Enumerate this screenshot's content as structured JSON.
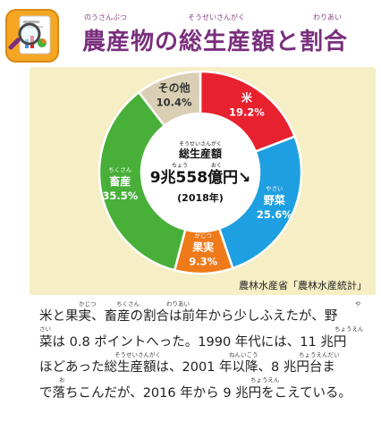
{
  "header": {
    "title": "農産物の総生産額と割合",
    "title_ruby": [
      "のうさんぶつ",
      "そうせいさんがく",
      "わりあい"
    ],
    "icon": "magnifier-over-chart-icon"
  },
  "chart_data": {
    "type": "pie",
    "style": "donut",
    "slices": [
      {
        "label": "米",
        "value": 19.2,
        "value_label": "19.2%",
        "color": "#e8212e"
      },
      {
        "label": "野菜",
        "value": 25.6,
        "value_label": "25.6%",
        "color": "#1e9fe1",
        "ruby": "やさい"
      },
      {
        "label": "果実",
        "value": 9.3,
        "value_label": "9.3%",
        "color": "#ef7a1a",
        "ruby": "かじつ"
      },
      {
        "label": "畜産",
        "value": 35.5,
        "value_label": "35.5%",
        "color": "#48b039",
        "ruby": "ちくさん"
      },
      {
        "label": "その他",
        "value": 10.4,
        "value_label": "10.4%",
        "color": "#d9cfb4"
      }
    ],
    "center": {
      "label": "総生産額",
      "label_ruby": "そうせいさんがく",
      "value": "9兆558億円↘",
      "value_ruby": [
        "ちょう",
        "おく"
      ],
      "year": "(2018年)"
    },
    "source": "農林水産省「農林水産統計」"
  },
  "body": {
    "lines": [
      "米と果実、畜産の割合は前年から少しふえたが、野",
      "菜は 0.8 ポイントへった。1990 年代には、11 兆円",
      "ほどあった総生産額は、2001 年以降、8 兆円台ま",
      "で落ちこんだが、2016 年から 9 兆円をこえている。"
    ],
    "ruby": [
      [
        "かじつ",
        "ちくさん",
        "わりあい",
        "や"
      ],
      [
        "さい",
        "ちょうえん"
      ],
      [
        "そうせいさんがく",
        "ねんいこう",
        "ちょうえんだい"
      ],
      [
        "お",
        "ちょうえん"
      ]
    ]
  },
  "colors": {
    "title": "#7a2f7c",
    "panel": "#f6eec4",
    "accent": "#f5a623"
  }
}
